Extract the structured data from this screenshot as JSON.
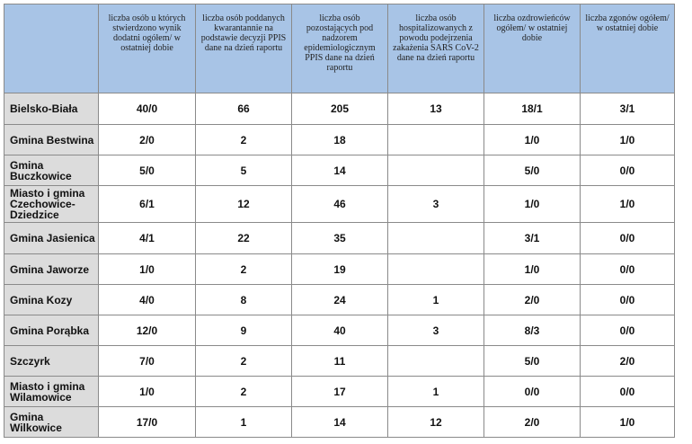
{
  "headers": [
    "",
    "liczba osób u których stwierdzono wynik dodatni ogółem/ w ostatniej dobie",
    "liczba osób poddanych kwarantannie na podstawie decyzji PPIS dane na dzień raportu",
    "liczba osób pozostających pod nadzorem epidemiologicznym PPIS dane na dzień raportu",
    "liczba osób hospitalizowanych z powodu podejrzenia zakażenia SARS CoV-2 dane na dzień raportu",
    "liczba ozdrowieńców ogółem/ w ostatniej dobie",
    "liczba zgonów ogółem/ w ostatniej dobie"
  ],
  "rows": [
    {
      "name": "Bielsko-Biała",
      "values": [
        "40/0",
        "66",
        "205",
        "13",
        "18/1",
        "3/1"
      ]
    },
    {
      "name": "Gmina Bestwina",
      "values": [
        "2/0",
        "2",
        "18",
        "",
        "1/0",
        "1/0"
      ]
    },
    {
      "name": "Gmina Buczkowice",
      "values": [
        "5/0",
        "5",
        "14",
        "",
        "5/0",
        "0/0"
      ]
    },
    {
      "name": "Miasto i gmina Czechowice-Dziedzice",
      "values": [
        "6/1",
        "12",
        "46",
        "3",
        "1/0",
        "1/0"
      ]
    },
    {
      "name": "Gmina Jasienica",
      "values": [
        "4/1",
        "22",
        "35",
        "",
        "3/1",
        "0/0"
      ]
    },
    {
      "name": "Gmina Jaworze",
      "values": [
        "1/0",
        "2",
        "19",
        "",
        "1/0",
        "0/0"
      ]
    },
    {
      "name": "Gmina Kozy",
      "values": [
        "4/0",
        "8",
        "24",
        "1",
        "2/0",
        "0/0"
      ]
    },
    {
      "name": "Gmina Porąbka",
      "values": [
        "12/0",
        "9",
        "40",
        "3",
        "8/3",
        "0/0"
      ]
    },
    {
      "name": "Szczyrk",
      "values": [
        "7/0",
        "2",
        "11",
        "",
        "5/0",
        "2/0"
      ]
    },
    {
      "name": "Miasto i gmina Wilamowice",
      "values": [
        "1/0",
        "2",
        "17",
        "1",
        "0/0",
        "0/0"
      ]
    },
    {
      "name": "Gmina Wilkowice",
      "values": [
        "17/0",
        "1",
        "14",
        "12",
        "2/0",
        "1/0"
      ]
    }
  ],
  "colors": {
    "header_bg": "#a8c4e6",
    "name_bg": "#dcdcdc",
    "border": "#8a8a8a"
  }
}
